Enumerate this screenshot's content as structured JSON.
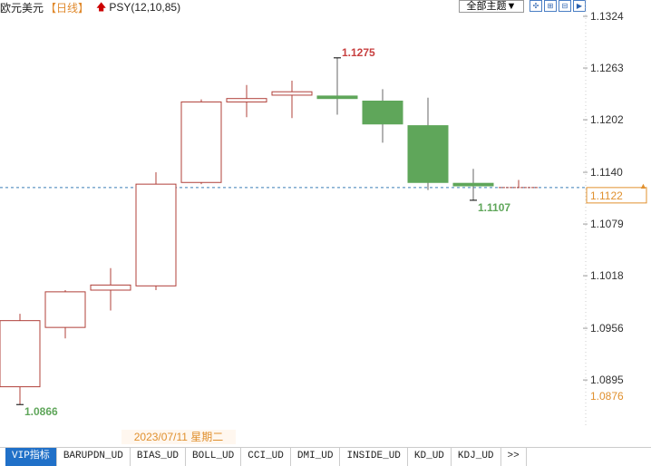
{
  "header": {
    "symbol": "欧元美元",
    "period": "【日线】",
    "indicator_icon": "up-arrow-icon",
    "indicator": "PSY(12,10,85)",
    "theme_button": "全部主题▼",
    "toolbar_icons": [
      "grid-icon",
      "zoom-in-icon",
      "zoom-out-icon",
      "next-icon"
    ]
  },
  "chart_data": {
    "type": "candlestick",
    "ylim": [
      1.0845,
      1.134
    ],
    "y_ticks": [
      "1.1324",
      "1.1263",
      "1.1202",
      "1.1140",
      "1.1079",
      "1.1018",
      "1.0956",
      "1.0895"
    ],
    "candles": [
      {
        "open": 1.0887,
        "close": 1.0965,
        "high": 1.0973,
        "low": 1.0866
      },
      {
        "open": 1.0957,
        "close": 1.0999,
        "high": 1.1001,
        "low": 1.0944
      },
      {
        "open": 1.1001,
        "close": 1.1007,
        "high": 1.1027,
        "low": 1.0977
      },
      {
        "open": 1.1006,
        "close": 1.1126,
        "high": 1.114,
        "low": 1.1001
      },
      {
        "open": 1.1128,
        "close": 1.1223,
        "high": 1.1226,
        "low": 1.1126
      },
      {
        "open": 1.1223,
        "close": 1.1227,
        "high": 1.1243,
        "low": 1.1205
      },
      {
        "open": 1.1231,
        "close": 1.1235,
        "high": 1.1248,
        "low": 1.1204
      },
      {
        "open": 1.123,
        "close": 1.1227,
        "high": 1.1275,
        "low": 1.1208
      },
      {
        "open": 1.1224,
        "close": 1.1197,
        "high": 1.1238,
        "low": 1.1175
      },
      {
        "open": 1.1195,
        "close": 1.1128,
        "high": 1.1228,
        "low": 1.1119
      },
      {
        "open": 1.1127,
        "close": 1.1124,
        "high": 1.1144,
        "low": 1.1107
      },
      {
        "open": 1.1122,
        "close": 1.1122,
        "high": 1.1131,
        "low": 1.1122
      }
    ],
    "annotations": {
      "high": "1.1275",
      "low": "1.0866",
      "recent_low": "1.1107"
    },
    "current_price": "1.1122",
    "current_price_value": 1.1122,
    "lowest_marker": "1.0876",
    "lowest_marker_value": 1.0876,
    "colors": {
      "up": "#b0403a",
      "down": "#5fa65a",
      "current": "#e0902e",
      "dash": "#3a7fb8"
    }
  },
  "date_label": "2023/07/11 星期二",
  "tabs": [
    "VIP指标",
    "BARUPDN_UD",
    "BIAS_UD",
    "BOLL_UD",
    "CCI_UD",
    "DMI_UD",
    "INSIDE_UD",
    "KD_UD",
    "KDJ_UD",
    ">>"
  ]
}
